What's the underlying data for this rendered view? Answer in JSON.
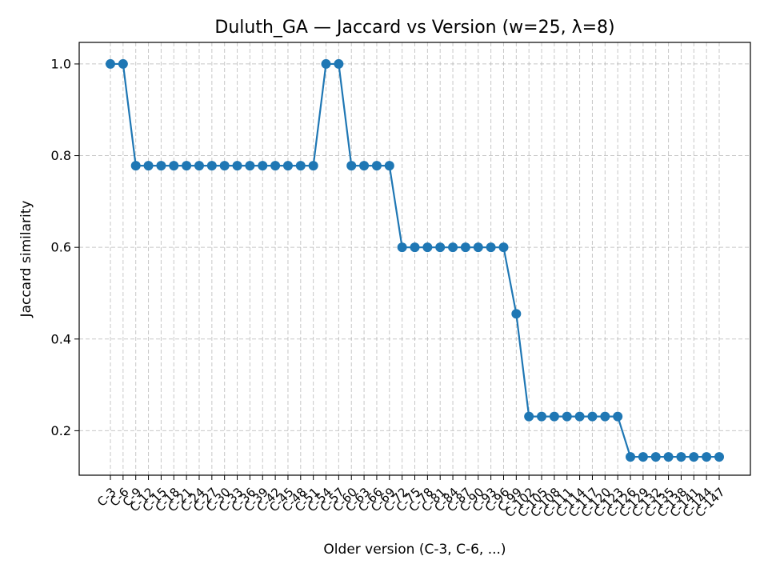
{
  "chart_data": {
    "type": "line",
    "title": "Duluth_GA — Jaccard vs Version (w=25, λ=8)",
    "xlabel": "Older version (C-3, C-6, ...)",
    "ylabel": "Jaccard similarity",
    "ylim": [
      0.103,
      1.047
    ],
    "yticks": [
      0.2,
      0.4,
      0.6,
      0.8,
      1.0
    ],
    "ytick_labels": [
      "0.2",
      "0.4",
      "0.6",
      "0.8",
      "1.0"
    ],
    "grid": true,
    "categories": [
      "C-3",
      "C-6",
      "C-9",
      "C-12",
      "C-15",
      "C-18",
      "C-21",
      "C-24",
      "C-27",
      "C-30",
      "C-33",
      "C-36",
      "C-39",
      "C-42",
      "C-45",
      "C-48",
      "C-51",
      "C-54",
      "C-57",
      "C-60",
      "C-63",
      "C-66",
      "C-69",
      "C-72",
      "C-75",
      "C-78",
      "C-81",
      "C-84",
      "C-87",
      "C-90",
      "C-93",
      "C-96",
      "C-99",
      "C-102",
      "C-105",
      "C-108",
      "C-111",
      "C-114",
      "C-117",
      "C-120",
      "C-123",
      "C-126",
      "C-129",
      "C-132",
      "C-135",
      "C-138",
      "C-141",
      "C-144",
      "C-147"
    ],
    "series": [
      {
        "values": [
          1.0,
          1.0,
          0.778,
          0.778,
          0.778,
          0.778,
          0.778,
          0.778,
          0.778,
          0.778,
          0.778,
          0.778,
          0.778,
          0.778,
          0.778,
          0.778,
          0.778,
          1.0,
          1.0,
          0.778,
          0.778,
          0.778,
          0.778,
          0.6,
          0.6,
          0.6,
          0.6,
          0.6,
          0.6,
          0.6,
          0.6,
          0.6,
          0.455,
          0.231,
          0.231,
          0.231,
          0.231,
          0.231,
          0.231,
          0.231,
          0.231,
          0.143,
          0.143,
          0.143,
          0.143,
          0.143,
          0.143,
          0.143,
          0.143
        ],
        "color": "#1f77b4"
      }
    ]
  }
}
